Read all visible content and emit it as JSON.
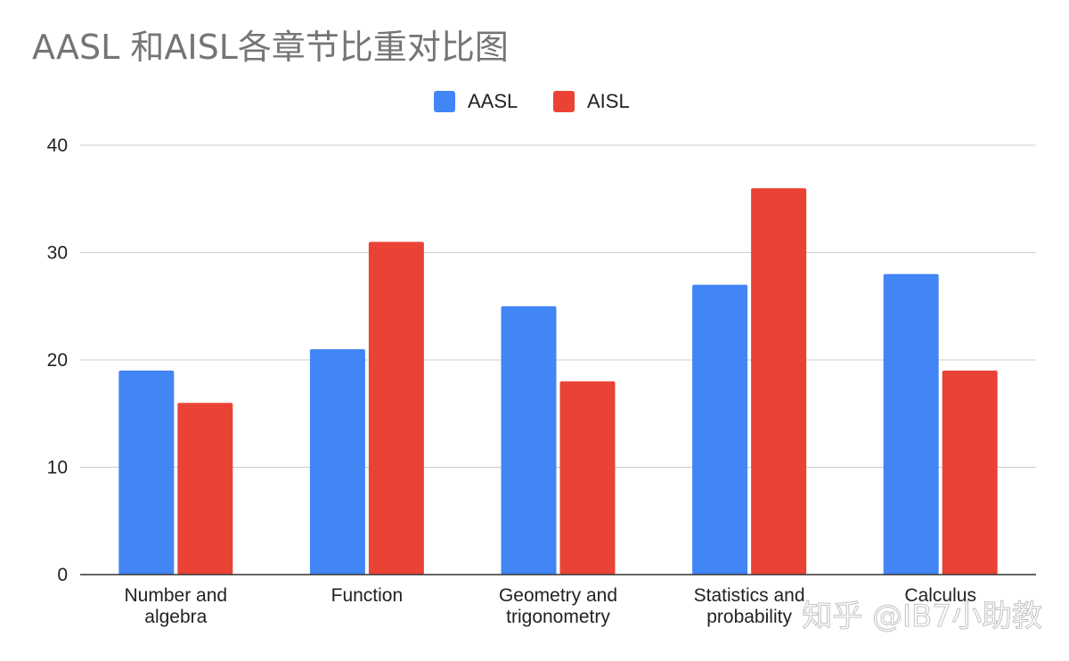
{
  "chart_data": {
    "type": "bar",
    "title": "AASL 和AISL各章节比重对比图",
    "categories": [
      [
        "Number and",
        "algebra"
      ],
      [
        "Function"
      ],
      [
        "Geometry and",
        "trigonometry"
      ],
      [
        "Statistics and",
        "probability"
      ],
      [
        "Calculus"
      ]
    ],
    "series": [
      {
        "name": "AASL",
        "color": "#4285f4",
        "values": [
          19,
          21,
          25,
          27,
          28
        ]
      },
      {
        "name": "AISL",
        "color": "#ea4335",
        "values": [
          16,
          31,
          18,
          36,
          19
        ]
      }
    ],
    "ylim": [
      0,
      40
    ],
    "yticks": [
      0,
      10,
      20,
      30,
      40
    ],
    "grid": true,
    "legend": "top-center"
  },
  "watermark": "知乎 @IB7小助教"
}
